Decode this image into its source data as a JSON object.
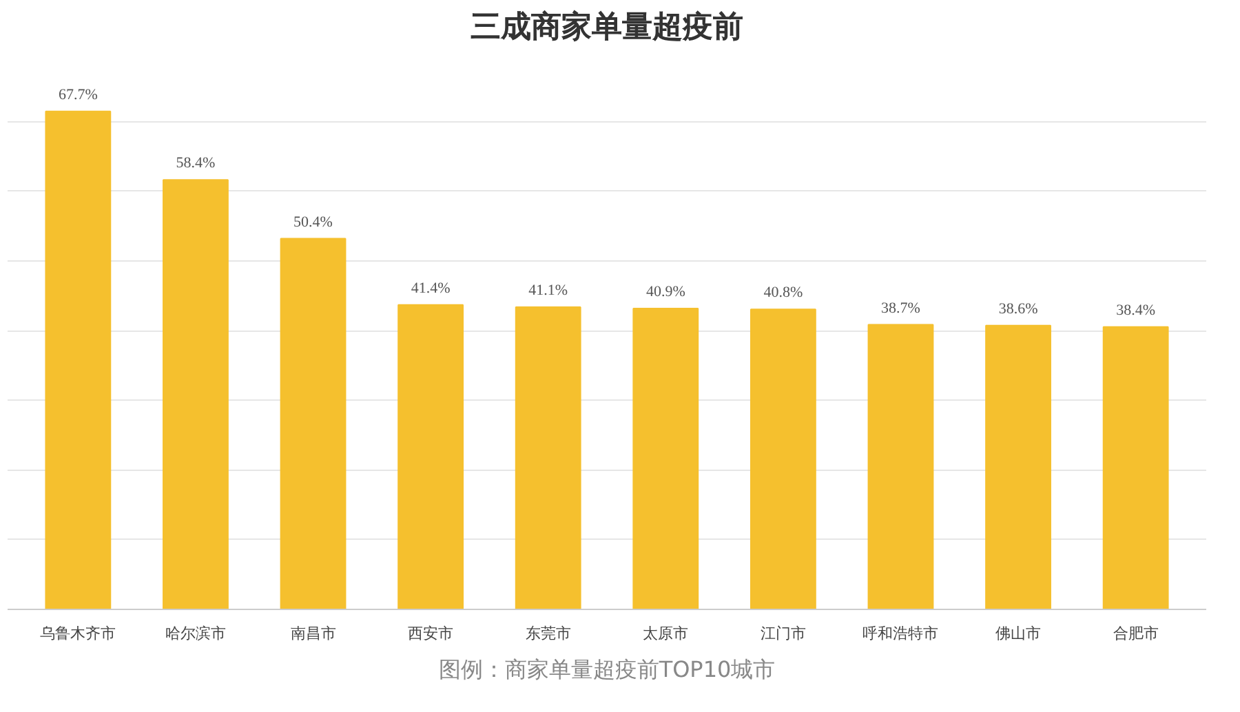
{
  "chart_data": {
    "type": "bar",
    "title": "三成商家单量超疫前",
    "categories": [
      "乌鲁木齐市",
      "哈尔滨市",
      "南昌市",
      "西安市",
      "东莞市",
      "太原市",
      "江门市",
      "呼和浩特市",
      "佛山市",
      "合肥市"
    ],
    "values": [
      67.7,
      58.4,
      50.4,
      41.4,
      41.1,
      40.9,
      40.8,
      38.7,
      38.6,
      38.4
    ],
    "value_labels": [
      "67.7%",
      "58.4%",
      "50.4%",
      "41.4%",
      "41.1%",
      "40.9%",
      "40.8%",
      "38.7%",
      "38.6%",
      "38.4%"
    ],
    "color": "#f5c02e",
    "grid": "y",
    "annotations": [
      "图例：商家单量超疫前TOP10城市"
    ]
  }
}
